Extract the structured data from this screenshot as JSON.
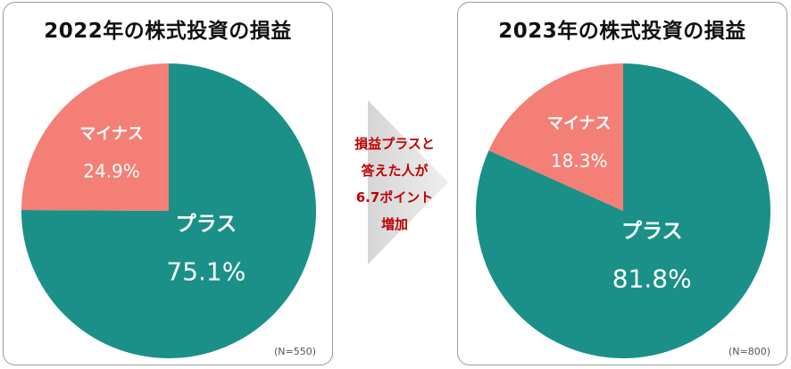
{
  "chart_data": [
    {
      "type": "pie",
      "title": "2022年の株式投資の損益",
      "slices": [
        {
          "label": "プラス",
          "value": 75.1,
          "value_label": "75.1%",
          "color": "#1a9088"
        },
        {
          "label": "マイナス",
          "value": 24.9,
          "value_label": "24.9%",
          "color": "#f47f76"
        }
      ],
      "sample_size": "(N=550)"
    },
    {
      "type": "pie",
      "title": "2023年の株式投資の損益",
      "slices": [
        {
          "label": "プラス",
          "value": 81.8,
          "value_label": "81.8%",
          "color": "#1a9088"
        },
        {
          "label": "マイナス",
          "value": 18.3,
          "value_label": "18.3%",
          "color": "#f47f76"
        }
      ],
      "sample_size": "(N=800)"
    }
  ],
  "annotation": {
    "lines": [
      "損益プラスと",
      "答えた人が",
      "6.7ポイント",
      "増加"
    ],
    "color": "#c00000"
  }
}
